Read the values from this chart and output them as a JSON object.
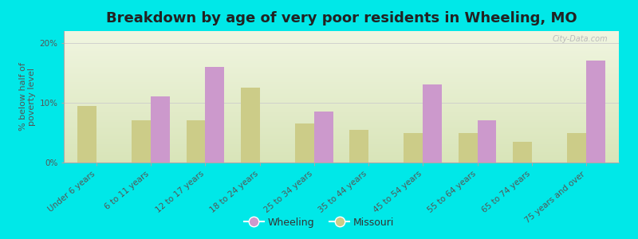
{
  "title": "Breakdown by age of very poor residents in Wheeling, MO",
  "ylabel": "% below half of\npoverty level",
  "categories": [
    "Under 6 years",
    "6 to 11 years",
    "12 to 17 years",
    "18 to 24 years",
    "25 to 34 years",
    "35 to 44 years",
    "45 to 54 years",
    "55 to 64 years",
    "65 to 74 years",
    "75 years and over"
  ],
  "wheeling": [
    0,
    11.0,
    16.0,
    0,
    8.5,
    0,
    13.0,
    7.0,
    0,
    17.0
  ],
  "missouri": [
    9.5,
    7.0,
    7.0,
    12.5,
    6.5,
    5.5,
    5.0,
    5.0,
    3.5,
    5.0
  ],
  "wheeling_color": "#cc99cc",
  "missouri_color": "#cccc88",
  "background_color": "#00e8e8",
  "title_color": "#222222",
  "ylim": [
    0,
    22
  ],
  "yticks": [
    0,
    10,
    20
  ],
  "ytick_labels": [
    "0%",
    "10%",
    "20%"
  ],
  "bar_width": 0.35,
  "title_fontsize": 13,
  "axis_label_fontsize": 8,
  "tick_fontsize": 7.5,
  "legend_labels": [
    "Wheeling",
    "Missouri"
  ],
  "watermark": "City-Data.com"
}
